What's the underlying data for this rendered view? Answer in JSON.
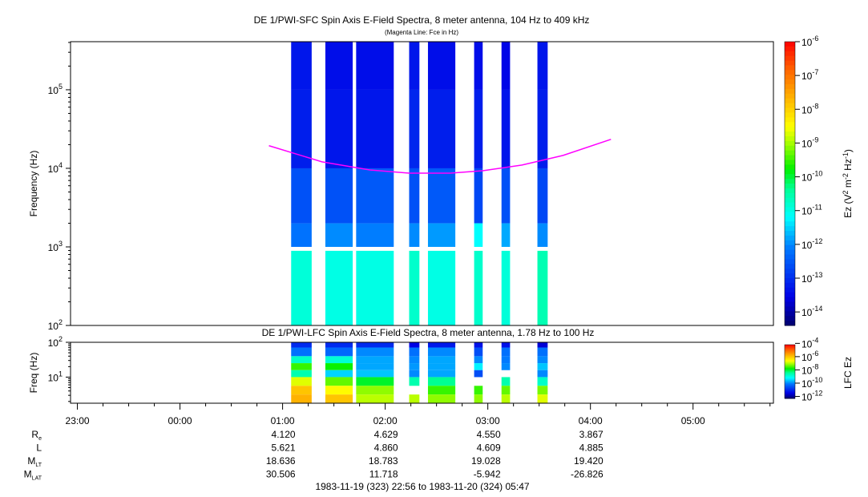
{
  "chart_data": [
    {
      "type": "heatmap",
      "title": "DE 1/PWI-SFC  Spin Axis E-Field Spectra, 8 meter antenna, 104 Hz to 409 kHz",
      "subtitle": "(Magenta Line: Fce in Hz)",
      "ylabel": "Frequency (Hz)",
      "yscale": "log",
      "ylim": [
        100,
        409000
      ],
      "yticks": [
        {
          "base": "10",
          "exp": "2"
        },
        {
          "base": "10",
          "exp": "3"
        },
        {
          "base": "10",
          "exp": "4"
        },
        {
          "base": "10",
          "exp": "5"
        }
      ],
      "colorbar": {
        "label_main": "Ez (V",
        "label_sup1": "2",
        "label_mid": " m",
        "label_sup2": "-2",
        "label_mid2": " Hz",
        "label_sup3": "-1",
        "label_end": ")",
        "scale": "log",
        "range_log10": [
          -14.4,
          -6
        ],
        "ticks": [
          "-6",
          "-7",
          "-8",
          "-9",
          "-10",
          "-11",
          "-12",
          "-13",
          "-14"
        ]
      },
      "bands_log10_hz": [
        [
          5.0,
          5.62
        ],
        [
          4.0,
          5.0
        ],
        [
          3.3,
          4.0
        ],
        [
          3.0,
          3.3
        ],
        [
          2.0,
          2.95
        ]
      ],
      "columns": [
        {
          "start": "01:05",
          "end": "01:17",
          "levels": [
            -13.3,
            -13.2,
            -12.6,
            -12.2,
            -10.9
          ]
        },
        {
          "start": "01:25",
          "end": "01:41",
          "levels": [
            -13.4,
            -13.3,
            -12.6,
            -12.0,
            -11.0
          ]
        },
        {
          "start": "01:43",
          "end": "02:05",
          "levels": [
            -13.4,
            -13.3,
            -12.5,
            -12.1,
            -11.0
          ]
        },
        {
          "start": "02:14",
          "end": "02:20",
          "levels": [
            -13.3,
            -13.1,
            -12.6,
            -12.0,
            -10.8
          ]
        },
        {
          "start": "02:25",
          "end": "02:41",
          "levels": [
            -13.4,
            -13.2,
            -12.5,
            -11.9,
            -11.0
          ]
        },
        {
          "start": "02:52",
          "end": "02:57",
          "levels": [
            -13.4,
            -13.2,
            -12.7,
            -11.2,
            -10.8
          ]
        },
        {
          "start": "03:08",
          "end": "03:13",
          "levels": [
            -13.5,
            -13.3,
            -12.6,
            -11.8,
            -10.9
          ]
        },
        {
          "start": "03:29",
          "end": "03:35",
          "levels": [
            -13.3,
            -13.2,
            -12.7,
            -12.0,
            -10.6
          ]
        }
      ],
      "fce_line": {
        "color": "#ff00ff",
        "points": [
          [
            "00:52",
            19400
          ],
          [
            "01:23",
            12100
          ],
          [
            "01:51",
            9530
          ],
          [
            "02:14",
            8680
          ],
          [
            "02:38",
            8680
          ],
          [
            "02:57",
            9310
          ],
          [
            "03:20",
            11000
          ],
          [
            "03:44",
            14600
          ],
          [
            "04:12",
            23400
          ]
        ]
      }
    },
    {
      "type": "heatmap",
      "title": "DE 1/PWI-LFC  Spin Axis E-Field Spectra, 8 meter antenna, 1.78 Hz to 100 Hz",
      "ylabel": "Freq (Hz)",
      "yscale": "log",
      "ylim": [
        1.78,
        100
      ],
      "yticks": [
        {
          "base": "10",
          "exp": "2"
        },
        {
          "base": "10",
          "exp": "1"
        }
      ],
      "colorbar": {
        "label": "LFC Ez",
        "scale": "log",
        "range_log10": [
          -12.3,
          -4.2
        ],
        "ticks": [
          "-4",
          "-6",
          "-8",
          "-10",
          "-12"
        ]
      },
      "bands_log10_hz": [
        [
          1.85,
          2.0
        ],
        [
          1.6,
          1.85
        ],
        [
          1.4,
          1.6
        ],
        [
          1.2,
          1.4
        ],
        [
          1.0,
          1.2
        ],
        [
          0.75,
          1.0
        ],
        [
          0.5,
          0.75
        ],
        [
          0.25,
          0.5
        ]
      ],
      "columns": [
        {
          "start": "01:05",
          "end": "01:17",
          "levels": [
            -11.0,
            -10.2,
            -8.8,
            -7.6,
            -8.6,
            -6.8,
            -6.0,
            -5.8
          ]
        },
        {
          "start": "01:25",
          "end": "01:41",
          "levels": [
            -11.0,
            -10.3,
            -8.9,
            -7.8,
            -9.5,
            -7.4,
            -6.6,
            -6.0
          ]
        },
        {
          "start": "01:43",
          "end": "02:05",
          "levels": [
            -11.0,
            -10.0,
            -9.8,
            -9.8,
            -9.6,
            -8.0,
            -7.2,
            -7.0
          ]
        },
        {
          "start": "02:14",
          "end": "02:20",
          "levels": [
            -11.5,
            -10.2,
            -10.0,
            -9.9,
            -10.0,
            -8.6,
            null,
            -7.0
          ]
        },
        {
          "start": "02:25",
          "end": "02:41",
          "levels": [
            -11.2,
            -10.0,
            -9.8,
            -9.8,
            -9.8,
            -8.4,
            -7.6,
            -7.2
          ]
        },
        {
          "start": "02:52",
          "end": "02:57",
          "levels": [
            -11.3,
            -10.6,
            -10.0,
            -9.3,
            -10.6,
            null,
            -7.6,
            -7.2
          ]
        },
        {
          "start": "03:08",
          "end": "03:13",
          "levels": [
            -11.3,
            -10.2,
            -10.1,
            -10.0,
            null,
            -8.6,
            -7.4,
            -7.0
          ]
        },
        {
          "start": "03:29",
          "end": "03:35",
          "levels": [
            -11.6,
            -10.2,
            -10.0,
            -9.6,
            -10.0,
            -8.8,
            -7.3,
            -6.8
          ]
        }
      ]
    }
  ],
  "time_axis": {
    "range": [
      "22:56",
      "05:47"
    ],
    "labels": [
      "23:00",
      "00:00",
      "01:00",
      "02:00",
      "03:00",
      "04:00",
      "05:00"
    ]
  },
  "ephemeris": {
    "rows": [
      {
        "label": "R",
        "sub": "e",
        "values": [
          "4.120",
          "4.629",
          "4.550",
          "3.867"
        ]
      },
      {
        "label": "L",
        "sub": "",
        "values": [
          "5.621",
          "4.860",
          "4.609",
          "4.885"
        ]
      },
      {
        "label": "M",
        "sub": "LT",
        "values": [
          "18.636",
          "18.783",
          "19.028",
          "19.420"
        ]
      },
      {
        "label": "M",
        "sub": "LAT",
        "values": [
          "30.506",
          "11.718",
          "-5.942",
          "-26.826"
        ]
      }
    ],
    "date_range": "1983-11-19 (323) 22:56 to 1983-11-20 (324) 05:47"
  }
}
